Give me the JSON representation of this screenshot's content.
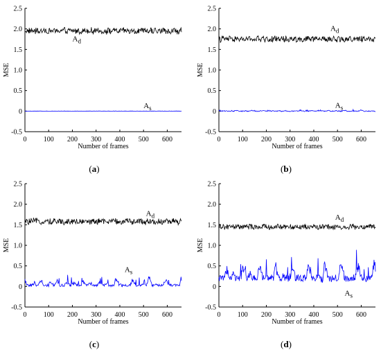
{
  "chart_data": [
    {
      "type": "line",
      "panel": "(a)",
      "caption_letter": "a",
      "xlabel": "Number of frames",
      "ylabel": "MSE",
      "xlim": [
        0,
        660
      ],
      "ylim": [
        -0.5,
        2.5
      ],
      "x_ticks": [
        "0",
        "100",
        "200",
        "300",
        "400",
        "500",
        "600"
      ],
      "y_ticks": [
        "-0.5",
        "0",
        "0.5",
        "1.0",
        "1.5",
        "2.0",
        "2.5"
      ],
      "frames": 660,
      "series": [
        {
          "name": "Ad",
          "label_main": "A",
          "label_sub": "d",
          "color": "#000000",
          "mean": 1.95,
          "noise": 0.07,
          "spikes": 0.0,
          "label_x": 200,
          "label_y": 1.7
        },
        {
          "name": "As",
          "label_main": "A",
          "label_sub": "s",
          "color": "#0000ff",
          "mean": 0.0,
          "noise": 0.003,
          "spikes": 0.0,
          "label_x": 500,
          "label_y": 0.07
        }
      ]
    },
    {
      "type": "line",
      "panel": "(b)",
      "caption_letter": "b",
      "xlabel": "Number of frames",
      "ylabel": "MSE",
      "xlim": [
        0,
        660
      ],
      "ylim": [
        -0.5,
        2.5
      ],
      "x_ticks": [
        "0",
        "100",
        "200",
        "300",
        "400",
        "500",
        "600"
      ],
      "y_ticks": [
        "-0.5",
        "0",
        "0.5",
        "1.0",
        "1.5",
        "2.0",
        "2.5"
      ],
      "frames": 660,
      "series": [
        {
          "name": "Ad",
          "label_main": "A",
          "label_sub": "d",
          "color": "#000000",
          "mean": 1.75,
          "noise": 0.07,
          "spikes": 0.0,
          "label_x": 470,
          "label_y": 1.95
        },
        {
          "name": "As",
          "label_main": "A",
          "label_sub": "s",
          "color": "#0000ff",
          "mean": 0.0,
          "noise": 0.01,
          "spikes": 0.02,
          "label_x": 490,
          "label_y": 0.08
        }
      ]
    },
    {
      "type": "line",
      "panel": "(c)",
      "caption_letter": "c",
      "xlabel": "Number of frames",
      "ylabel": "MSE",
      "xlim": [
        0,
        660
      ],
      "ylim": [
        -0.5,
        2.5
      ],
      "x_ticks": [
        "0",
        "100",
        "200",
        "300",
        "400",
        "500",
        "600"
      ],
      "y_ticks": [
        "-0.5",
        "0",
        "0.5",
        "1.0",
        "1.5",
        "2.0",
        "2.5"
      ],
      "frames": 660,
      "series": [
        {
          "name": "Ad",
          "label_main": "A",
          "label_sub": "d",
          "color": "#000000",
          "mean": 1.58,
          "noise": 0.07,
          "spikes": 0.0,
          "label_x": 510,
          "label_y": 1.72
        },
        {
          "name": "As",
          "label_main": "A",
          "label_sub": "s",
          "color": "#0000ff",
          "mean": 0.03,
          "noise": 0.03,
          "spikes": 0.15,
          "label_x": 420,
          "label_y": 0.35
        }
      ]
    },
    {
      "type": "line",
      "panel": "(d)",
      "caption_letter": "d",
      "xlabel": "Number of frames",
      "ylabel": "MSE",
      "xlim": [
        0,
        660
      ],
      "ylim": [
        -0.5,
        2.5
      ],
      "x_ticks": [
        "0",
        "100",
        "200",
        "300",
        "400",
        "500",
        "600"
      ],
      "y_ticks": [
        "-0.5",
        "0",
        "0.5",
        "1.0",
        "1.5",
        "2.0",
        "2.5"
      ],
      "frames": 660,
      "series": [
        {
          "name": "Ad",
          "label_main": "A",
          "label_sub": "d",
          "color": "#000000",
          "mean": 1.45,
          "noise": 0.06,
          "spikes": 0.0,
          "label_x": 490,
          "label_y": 1.62
        },
        {
          "name": "As",
          "label_main": "A",
          "label_sub": "s",
          "color": "#0000ff",
          "mean": 0.2,
          "noise": 0.08,
          "spikes": 0.35,
          "label_x": 530,
          "label_y": -0.22
        }
      ]
    }
  ]
}
